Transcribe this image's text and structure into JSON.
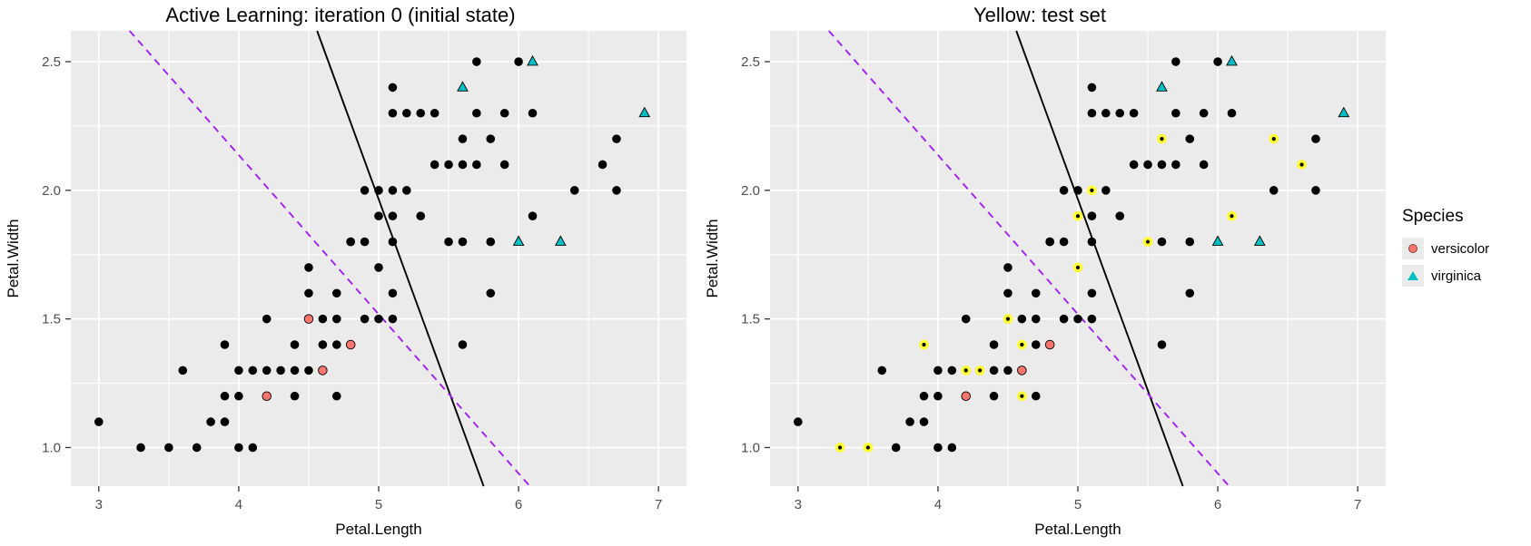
{
  "styles": {
    "panel_bg": "#EBEBEB",
    "grid": "#FFFFFF",
    "tick_color": "#333333",
    "tick_label_color": "#4D4D4D",
    "text_color": "#000000"
  },
  "legend": {
    "title": "Species",
    "key_bg": "#EBEBEB",
    "items": [
      {
        "label": "versicolor",
        "color": "#F8766D",
        "shape": "circle"
      },
      {
        "label": "virginica",
        "color": "#00BFC4",
        "shape": "triangle"
      }
    ]
  },
  "chart_data": [
    {
      "type": "scatter",
      "title": "Active Learning: iteration 0 (initial state)",
      "xlabel": "Petal.Length",
      "ylabel": "Petal.Width",
      "xlim": [
        2.8,
        7.2
      ],
      "ylim": [
        0.85,
        2.62
      ],
      "xticks": [
        3,
        4,
        5,
        6,
        7
      ],
      "xtick_labels": [
        "3",
        "4",
        "5",
        "6",
        "7"
      ],
      "yticks": [
        1.0,
        1.5,
        2.0,
        2.5
      ],
      "ytick_labels": [
        "1.0",
        "1.5",
        "2.0",
        "2.5"
      ],
      "xticks_minor": [
        3.5,
        4.5,
        5.5,
        6.5
      ],
      "yticks_minor": [
        1.25,
        1.75,
        2.25
      ],
      "lines": [
        {
          "name": "classifier-boundary-solid",
          "style": "solid",
          "color": "#000000",
          "p1": [
            4.56,
            2.62
          ],
          "p2": [
            5.75,
            0.85
          ]
        },
        {
          "name": "reference-boundary-dashed",
          "style": "dashed",
          "color": "#A020F0",
          "p1": [
            3.22,
            2.62
          ],
          "p2": [
            6.08,
            0.85
          ]
        }
      ],
      "series": [
        {
          "name": "unlabeled",
          "shape": "circle",
          "color": "#000000",
          "points": [
            [
              4.7,
              1.4
            ],
            [
              4.9,
              1.5
            ],
            [
              4.0,
              1.3
            ],
            [
              4.6,
              1.5
            ],
            [
              4.5,
              1.3
            ],
            [
              4.7,
              1.6
            ],
            [
              3.3,
              1.0
            ],
            [
              3.9,
              1.4
            ],
            [
              3.5,
              1.0
            ],
            [
              4.2,
              1.5
            ],
            [
              4.0,
              1.0
            ],
            [
              3.6,
              1.3
            ],
            [
              4.4,
              1.4
            ],
            [
              4.1,
              1.0
            ],
            [
              3.9,
              1.1
            ],
            [
              4.8,
              1.8
            ],
            [
              4.7,
              1.2
            ],
            [
              4.3,
              1.3
            ],
            [
              5.0,
              1.7
            ],
            [
              3.8,
              1.1
            ],
            [
              3.7,
              1.0
            ],
            [
              3.9,
              1.2
            ],
            [
              5.1,
              1.6
            ],
            [
              4.5,
              1.6
            ],
            [
              4.7,
              1.5
            ],
            [
              4.4,
              1.3
            ],
            [
              4.1,
              1.3
            ],
            [
              4.4,
              1.2
            ],
            [
              4.6,
              1.4
            ],
            [
              4.0,
              1.2
            ],
            [
              4.2,
              1.3
            ],
            [
              3.0,
              1.1
            ],
            [
              4.5,
              1.5
            ],
            [
              6.0,
              2.5
            ],
            [
              5.1,
              1.9
            ],
            [
              5.9,
              2.1
            ],
            [
              5.6,
              1.8
            ],
            [
              5.8,
              2.2
            ],
            [
              6.6,
              2.1
            ],
            [
              4.5,
              1.7
            ],
            [
              5.8,
              1.8
            ],
            [
              5.1,
              2.0
            ],
            [
              5.3,
              1.9
            ],
            [
              5.5,
              2.1
            ],
            [
              5.0,
              2.0
            ],
            [
              5.1,
              2.4
            ],
            [
              5.3,
              2.3
            ],
            [
              5.5,
              1.8
            ],
            [
              6.7,
              2.2
            ],
            [
              5.0,
              1.5
            ],
            [
              5.7,
              2.3
            ],
            [
              4.9,
              2.0
            ],
            [
              6.7,
              2.0
            ],
            [
              4.9,
              1.8
            ],
            [
              5.7,
              2.1
            ],
            [
              4.8,
              1.8
            ],
            [
              5.6,
              2.1
            ],
            [
              5.8,
              1.6
            ],
            [
              6.1,
              1.9
            ],
            [
              6.4,
              2.0
            ],
            [
              5.6,
              2.2
            ],
            [
              5.1,
              1.5
            ],
            [
              5.6,
              1.4
            ],
            [
              6.1,
              2.3
            ],
            [
              5.4,
              2.1
            ],
            [
              5.1,
              2.3
            ],
            [
              5.9,
              2.3
            ],
            [
              5.7,
              2.5
            ],
            [
              5.2,
              2.3
            ],
            [
              5.0,
              1.9
            ],
            [
              5.2,
              2.0
            ],
            [
              5.4,
              2.3
            ],
            [
              5.1,
              1.8
            ]
          ]
        },
        {
          "name": "labeled-versicolor",
          "shape": "circle",
          "color": "#F8766D",
          "edge": "#000000",
          "points": [
            [
              4.5,
              1.5
            ],
            [
              4.8,
              1.4
            ],
            [
              4.6,
              1.3
            ],
            [
              4.2,
              1.2
            ]
          ]
        },
        {
          "name": "labeled-virginica",
          "shape": "triangle",
          "color": "#00BFC4",
          "edge": "#000000",
          "points": [
            [
              6.1,
              2.5
            ],
            [
              5.6,
              2.4
            ],
            [
              6.9,
              2.3
            ],
            [
              6.0,
              1.8
            ],
            [
              6.3,
              1.8
            ]
          ]
        }
      ]
    },
    {
      "type": "scatter",
      "title": "Yellow: test set",
      "xlabel": "Petal.Length",
      "ylabel": "Petal.Width",
      "xlim": [
        2.8,
        7.2
      ],
      "ylim": [
        0.85,
        2.62
      ],
      "xticks": [
        3,
        4,
        5,
        6,
        7
      ],
      "xtick_labels": [
        "3",
        "4",
        "5",
        "6",
        "7"
      ],
      "yticks": [
        1.0,
        1.5,
        2.0,
        2.5
      ],
      "ytick_labels": [
        "1.0",
        "1.5",
        "2.0",
        "2.5"
      ],
      "xticks_minor": [
        3.5,
        4.5,
        5.5,
        6.5
      ],
      "yticks_minor": [
        1.25,
        1.75,
        2.25
      ],
      "lines": [
        {
          "name": "classifier-boundary-solid",
          "style": "solid",
          "color": "#000000",
          "p1": [
            4.56,
            2.62
          ],
          "p2": [
            5.75,
            0.85
          ]
        },
        {
          "name": "reference-boundary-dashed",
          "style": "dashed",
          "color": "#A020F0",
          "p1": [
            3.22,
            2.62
          ],
          "p2": [
            6.08,
            0.85
          ]
        }
      ],
      "series": [
        {
          "name": "unlabeled",
          "shape": "circle",
          "color": "#000000",
          "points": [
            [
              4.7,
              1.4
            ],
            [
              4.9,
              1.5
            ],
            [
              4.0,
              1.3
            ],
            [
              4.6,
              1.5
            ],
            [
              4.5,
              1.3
            ],
            [
              4.7,
              1.6
            ],
            [
              3.3,
              1.0
            ],
            [
              3.9,
              1.4
            ],
            [
              3.5,
              1.0
            ],
            [
              4.2,
              1.5
            ],
            [
              4.0,
              1.0
            ],
            [
              3.6,
              1.3
            ],
            [
              4.4,
              1.4
            ],
            [
              4.1,
              1.0
            ],
            [
              3.9,
              1.1
            ],
            [
              4.8,
              1.8
            ],
            [
              4.7,
              1.2
            ],
            [
              4.3,
              1.3
            ],
            [
              5.0,
              1.7
            ],
            [
              3.8,
              1.1
            ],
            [
              3.7,
              1.0
            ],
            [
              3.9,
              1.2
            ],
            [
              5.1,
              1.6
            ],
            [
              4.5,
              1.6
            ],
            [
              4.7,
              1.5
            ],
            [
              4.4,
              1.3
            ],
            [
              4.1,
              1.3
            ],
            [
              4.4,
              1.2
            ],
            [
              4.6,
              1.4
            ],
            [
              4.0,
              1.2
            ],
            [
              4.2,
              1.3
            ],
            [
              3.0,
              1.1
            ],
            [
              4.5,
              1.5
            ],
            [
              6.0,
              2.5
            ],
            [
              5.1,
              1.9
            ],
            [
              5.9,
              2.1
            ],
            [
              5.6,
              1.8
            ],
            [
              5.8,
              2.2
            ],
            [
              6.6,
              2.1
            ],
            [
              4.5,
              1.7
            ],
            [
              5.8,
              1.8
            ],
            [
              5.1,
              2.0
            ],
            [
              5.3,
              1.9
            ],
            [
              5.5,
              2.1
            ],
            [
              5.0,
              2.0
            ],
            [
              5.1,
              2.4
            ],
            [
              5.3,
              2.3
            ],
            [
              5.5,
              1.8
            ],
            [
              6.7,
              2.2
            ],
            [
              5.0,
              1.5
            ],
            [
              5.7,
              2.3
            ],
            [
              4.9,
              2.0
            ],
            [
              6.7,
              2.0
            ],
            [
              4.9,
              1.8
            ],
            [
              5.7,
              2.1
            ],
            [
              4.8,
              1.8
            ],
            [
              5.6,
              2.1
            ],
            [
              5.8,
              1.6
            ],
            [
              6.1,
              1.9
            ],
            [
              6.4,
              2.0
            ],
            [
              5.6,
              2.2
            ],
            [
              5.1,
              1.5
            ],
            [
              5.6,
              1.4
            ],
            [
              6.1,
              2.3
            ],
            [
              5.4,
              2.1
            ],
            [
              5.1,
              2.3
            ],
            [
              5.9,
              2.3
            ],
            [
              5.7,
              2.5
            ],
            [
              5.2,
              2.3
            ],
            [
              5.0,
              1.9
            ],
            [
              5.2,
              2.0
            ],
            [
              5.4,
              2.3
            ],
            [
              5.1,
              1.8
            ]
          ]
        },
        {
          "name": "test-set",
          "shape": "ring",
          "color": "#FFFF33",
          "points": [
            [
              3.3,
              1.0
            ],
            [
              3.5,
              1.0
            ],
            [
              3.9,
              1.4
            ],
            [
              4.2,
              1.3
            ],
            [
              4.3,
              1.3
            ],
            [
              4.5,
              1.5
            ],
            [
              4.6,
              1.4
            ],
            [
              4.6,
              1.2
            ],
            [
              5.0,
              1.7
            ],
            [
              5.0,
              1.9
            ],
            [
              5.1,
              2.0
            ],
            [
              5.5,
              1.8
            ],
            [
              5.6,
              2.2
            ],
            [
              6.1,
              1.9
            ],
            [
              6.4,
              2.2
            ],
            [
              6.6,
              2.1
            ]
          ]
        },
        {
          "name": "labeled-versicolor",
          "shape": "circle",
          "color": "#F8766D",
          "edge": "#000000",
          "points": [
            [
              4.8,
              1.4
            ],
            [
              4.6,
              1.3
            ],
            [
              4.2,
              1.2
            ]
          ]
        },
        {
          "name": "labeled-virginica",
          "shape": "triangle",
          "color": "#00BFC4",
          "edge": "#000000",
          "points": [
            [
              6.1,
              2.5
            ],
            [
              5.6,
              2.4
            ],
            [
              6.9,
              2.3
            ],
            [
              6.0,
              1.8
            ],
            [
              6.3,
              1.8
            ]
          ]
        }
      ]
    }
  ]
}
